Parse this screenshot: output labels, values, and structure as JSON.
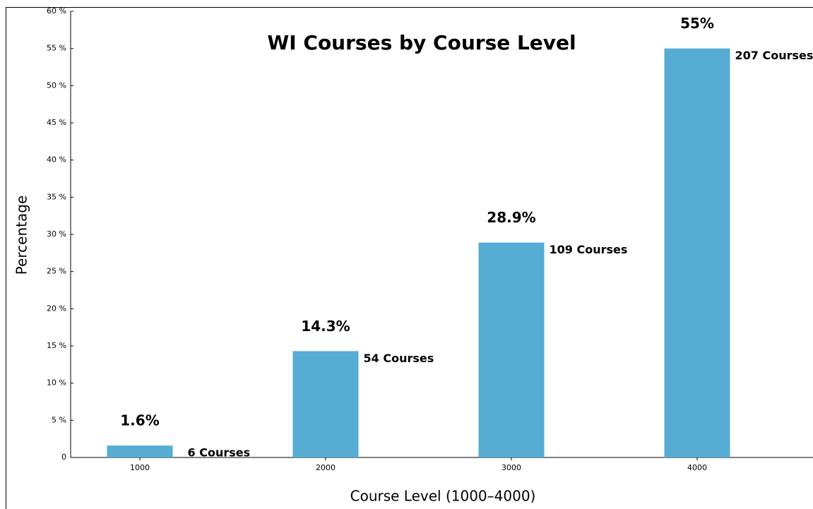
{
  "chart_data": {
    "type": "bar",
    "title": "WI Courses by Course Level",
    "xlabel": "Course Level (1000–4000)",
    "ylabel": "Percentage",
    "categories": [
      "1000",
      "2000",
      "3000",
      "4000"
    ],
    "values": [
      1.6,
      14.3,
      28.9,
      55
    ],
    "value_labels": [
      "1.6%",
      "14.3%",
      "28.9%",
      "55%"
    ],
    "annotations": [
      "6 Courses",
      "54 Courses",
      "109 Courses",
      "207 Courses"
    ],
    "color": "#56acd2",
    "ylim": [
      0,
      60
    ],
    "yticks": [
      0,
      {
        "value": 5,
        "label": "5 %"
      },
      {
        "value": 10,
        "label": "10 %"
      },
      {
        "value": 15,
        "label": "15 %"
      },
      {
        "value": 20,
        "label": "20 %"
      },
      {
        "value": 25,
        "label": "25 %"
      },
      {
        "value": 30,
        "label": "30 %"
      },
      {
        "value": 35,
        "label": "35 %"
      },
      {
        "value": 40,
        "label": "40 %"
      },
      {
        "value": 45,
        "label": "45 %"
      },
      {
        "value": 50,
        "label": "50 %"
      },
      {
        "value": 55,
        "label": "55 %"
      },
      {
        "value": 60,
        "label": "60 %"
      }
    ]
  }
}
